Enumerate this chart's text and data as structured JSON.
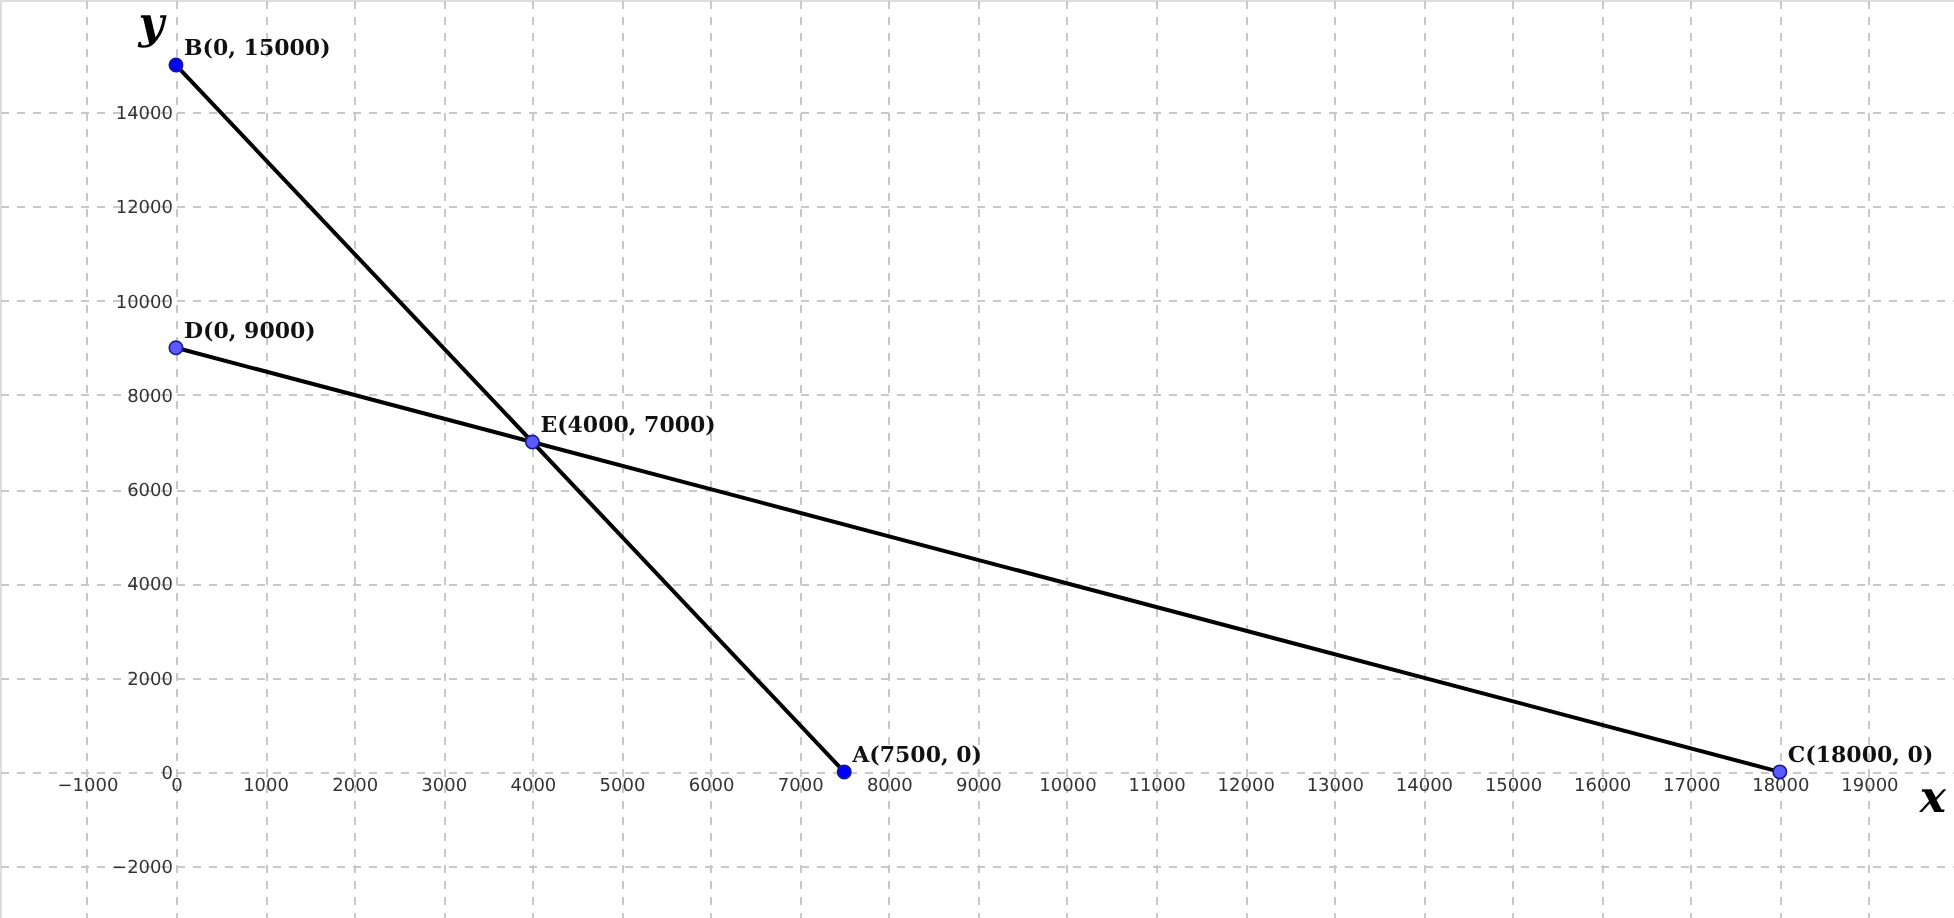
{
  "chart_data": {
    "type": "line",
    "xlabel": "x",
    "ylabel": "y",
    "xlim": [
      -1975,
      19955
    ],
    "ylim": [
      -3100,
      16380
    ],
    "xticks": [
      -1000,
      0,
      1000,
      2000,
      3000,
      4000,
      5000,
      6000,
      7000,
      8000,
      9000,
      10000,
      11000,
      12000,
      13000,
      14000,
      15000,
      16000,
      17000,
      18000,
      19000
    ],
    "yticks": [
      -2000,
      0,
      2000,
      4000,
      6000,
      8000,
      10000,
      12000,
      14000
    ],
    "grid": true,
    "series": [
      {
        "color": "#000000",
        "x": [
          7500,
          0
        ],
        "values": [
          0,
          15000
        ]
      },
      {
        "color": "#000000",
        "x": [
          18000,
          0
        ],
        "values": [
          0,
          9000
        ]
      },
      {
        "type": "scatter",
        "marker": "circle",
        "x": [
          7500,
          0,
          18000,
          0,
          4000
        ],
        "values": [
          0,
          15000,
          0,
          9000,
          7000
        ],
        "colors": [
          "#0000ff",
          "#0000ff",
          "#5a5aff",
          "#5a5aff",
          "#5a5aff"
        ]
      }
    ],
    "annotations": [
      {
        "text": "A(7500, 0)",
        "x": 7500,
        "y": 0
      },
      {
        "text": "B(0, 15000)",
        "x": 0,
        "y": 15000
      },
      {
        "text": "C(18000, 0)",
        "x": 18000,
        "y": 0
      },
      {
        "text": "D(0, 9000)",
        "x": 0,
        "y": 9000
      },
      {
        "text": "E(4000, 7000)",
        "x": 4000,
        "y": 7000
      }
    ]
  }
}
